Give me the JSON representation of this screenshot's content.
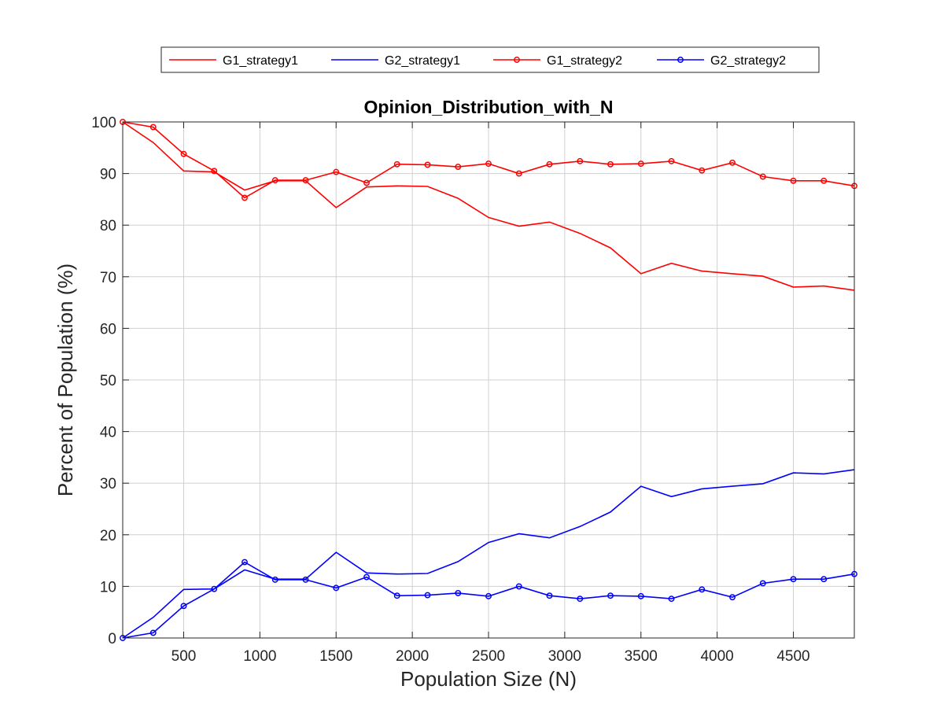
{
  "chart_data": {
    "type": "line",
    "title": "Opinion_Distribution_with_N",
    "xlabel": "Population Size (N)",
    "ylabel": "Percent of Population (%)",
    "xlim": [
      100,
      4900
    ],
    "ylim": [
      0,
      100
    ],
    "xticks": [
      500,
      1000,
      1500,
      2000,
      2500,
      3000,
      3500,
      4000,
      4500
    ],
    "yticks": [
      0,
      10,
      20,
      30,
      40,
      50,
      60,
      70,
      80,
      90,
      100
    ],
    "grid": true,
    "legend_position": "top-outside",
    "x": [
      100,
      300,
      500,
      700,
      900,
      1100,
      1300,
      1500,
      1700,
      1900,
      2100,
      2300,
      2500,
      2700,
      2900,
      3100,
      3300,
      3500,
      3700,
      3900,
      4100,
      4300,
      4500,
      4700,
      4900
    ],
    "series": [
      {
        "name": "G1_strategy1",
        "color": "#ff0000",
        "marker": false,
        "values": [
          100,
          96,
          90.5,
          90.3,
          86.8,
          88.6,
          88.6,
          83.4,
          87.4,
          87.6,
          87.5,
          85.2,
          81.5,
          79.8,
          80.6,
          78.4,
          75.6,
          70.6,
          72.6,
          71.1,
          70.6,
          70.1,
          68,
          68.2,
          67.4
        ]
      },
      {
        "name": "G2_strategy1",
        "color": "#0000ff",
        "marker": false,
        "values": [
          0,
          4,
          9.4,
          9.5,
          13.2,
          11.4,
          11.4,
          16.6,
          12.6,
          12.4,
          12.5,
          14.8,
          18.5,
          20.2,
          19.4,
          21.6,
          24.4,
          29.4,
          27.4,
          28.9,
          29.4,
          29.9,
          32,
          31.8,
          32.6
        ]
      },
      {
        "name": "G1_strategy2",
        "color": "#ff0000",
        "marker": true,
        "values": [
          100,
          99,
          93.8,
          90.5,
          85.3,
          88.7,
          88.7,
          90.3,
          88.2,
          91.8,
          91.7,
          91.3,
          91.9,
          90,
          91.8,
          92.4,
          91.8,
          91.9,
          92.4,
          90.6,
          92.1,
          89.4,
          88.6,
          88.6,
          87.6
        ]
      },
      {
        "name": "G2_strategy2",
        "color": "#0000ff",
        "marker": true,
        "values": [
          0,
          1,
          6.2,
          9.5,
          14.7,
          11.3,
          11.3,
          9.7,
          11.8,
          8.2,
          8.3,
          8.7,
          8.1,
          10,
          8.2,
          7.6,
          8.2,
          8.1,
          7.6,
          9.4,
          7.9,
          10.6,
          11.4,
          11.4,
          12.4
        ]
      }
    ]
  }
}
